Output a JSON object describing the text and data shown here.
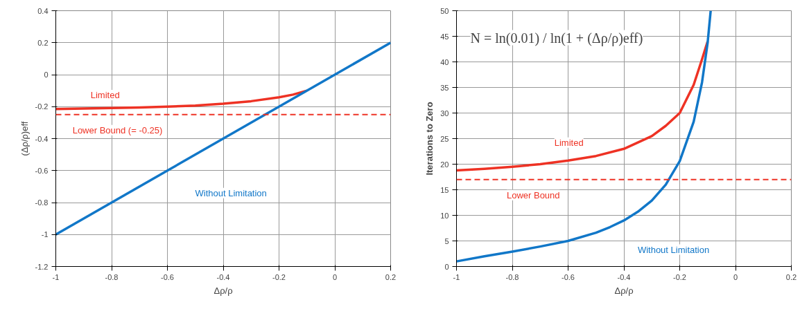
{
  "chart_data": [
    {
      "type": "line",
      "xlabel": "Δρ/ρ",
      "ylabel": "(Δρ/ρ)eff",
      "xlim": [
        -1,
        0.2
      ],
      "ylim": [
        -1.2,
        0.4
      ],
      "xticks": [
        -1,
        -0.8,
        -0.6,
        -0.4,
        -0.2,
        0,
        0.2
      ],
      "yticks": [
        -1.2,
        -1,
        -0.8,
        -0.6,
        -0.4,
        -0.2,
        0,
        0.2,
        0.4
      ],
      "grid": true,
      "legend": false,
      "marker": "none",
      "line_style": "solid",
      "series": [
        {
          "name": "Limited",
          "color": "#ee3224",
          "x": [
            -1,
            -0.9,
            -0.8,
            -0.7,
            -0.6,
            -0.5,
            -0.4,
            -0.3,
            -0.2,
            -0.15,
            -0.1
          ],
          "values": [
            -0.215,
            -0.212,
            -0.209,
            -0.205,
            -0.2,
            -0.194,
            -0.182,
            -0.166,
            -0.142,
            -0.125,
            -0.1
          ]
        },
        {
          "name": "Without Limitation",
          "color": "#1177c8",
          "x": [
            -1,
            -0.6,
            -0.2,
            0,
            0.2
          ],
          "values": [
            -1,
            -0.6,
            -0.2,
            0,
            0.2
          ]
        }
      ],
      "ref_lines": [
        {
          "axis": "y",
          "value": -0.25,
          "label": "Lower Bound (= -0.25)",
          "color": "#ee3224",
          "line_style": "dashed"
        }
      ]
    },
    {
      "type": "line",
      "xlabel": "Δρ/ρ",
      "ylabel": "Iterations to Zero",
      "xlim": [
        -1,
        0.2
      ],
      "ylim": [
        0,
        50
      ],
      "xticks": [
        -1,
        -0.8,
        -0.6,
        -0.4,
        -0.2,
        0,
        0.2
      ],
      "yticks": [
        0,
        5,
        10,
        15,
        20,
        25,
        30,
        35,
        40,
        45,
        50
      ],
      "grid": true,
      "legend": false,
      "marker": "none",
      "line_style": "solid",
      "annotations": [
        "N = ln(0.01) / ln(1 + (Δρ/ρ)eff)"
      ],
      "series": [
        {
          "name": "Limited",
          "color": "#ee3224",
          "x": [
            -1,
            -0.9,
            -0.8,
            -0.7,
            -0.6,
            -0.5,
            -0.4,
            -0.3,
            -0.25,
            -0.2,
            -0.15,
            -0.12,
            -0.1
          ],
          "values": [
            18.8,
            19.1,
            19.5,
            20.0,
            20.7,
            21.6,
            23.0,
            25.5,
            27.5,
            30,
            35.5,
            40.5,
            44
          ]
        },
        {
          "name": "Without Limitation",
          "color": "#1177c8",
          "x": [
            -1,
            -0.9,
            -0.8,
            -0.7,
            -0.6,
            -0.5,
            -0.45,
            -0.4,
            -0.35,
            -0.3,
            -0.25,
            -0.2,
            -0.15,
            -0.12,
            -0.1,
            -0.089
          ],
          "values": [
            1,
            2.0,
            2.9,
            3.9,
            5.0,
            6.6,
            7.7,
            9.0,
            10.7,
            12.9,
            16.0,
            20.6,
            28.3,
            36,
            43.7,
            50
          ]
        }
      ],
      "ref_lines": [
        {
          "axis": "y",
          "value": 17,
          "label": "Lower Bound",
          "color": "#ee3224",
          "line_style": "dashed"
        }
      ]
    }
  ]
}
